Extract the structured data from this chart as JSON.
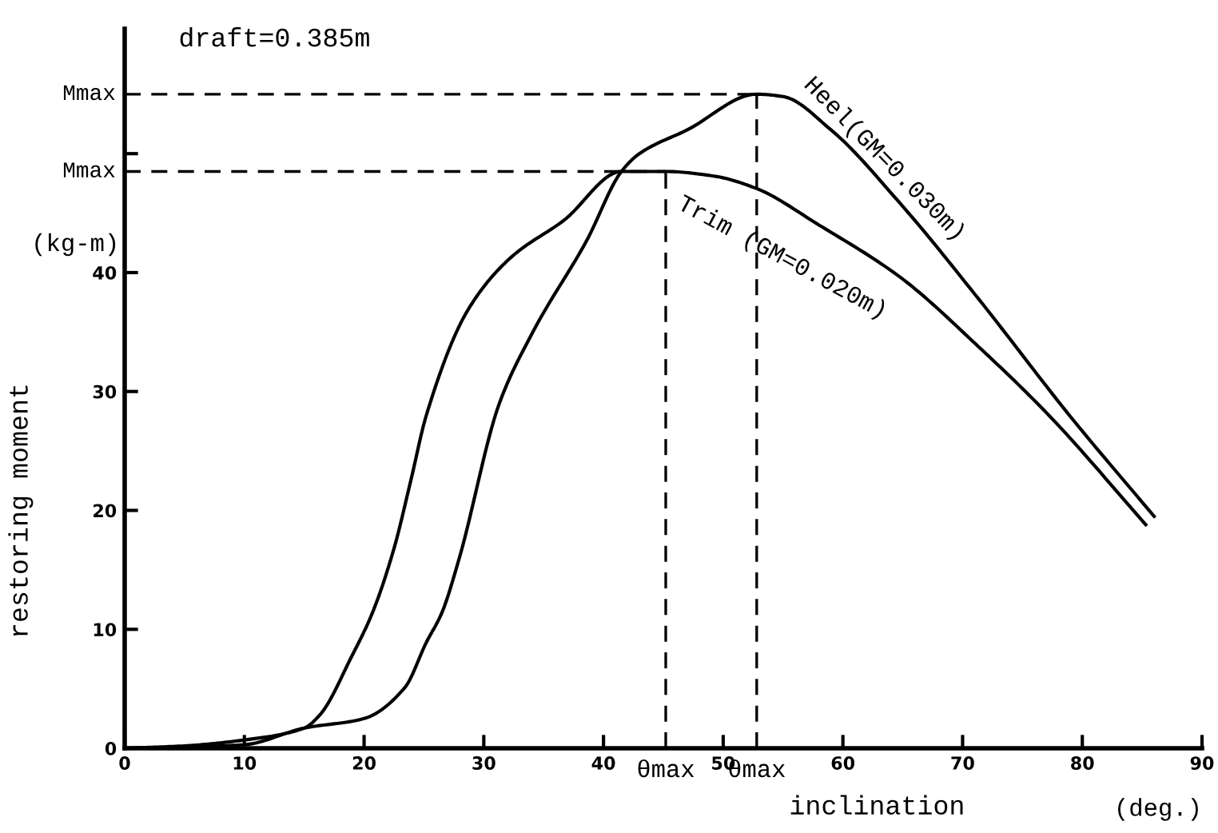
{
  "chart_data": {
    "type": "line",
    "xlabel": "inclination",
    "ylabel": "restoring moment",
    "annotations": [
      "draft=0.385m",
      "(kg-m)",
      "(deg.)"
    ],
    "series": [
      {
        "name": "Heel(GM=0.030m)",
        "color": "#000000",
        "x": [
          0,
          5,
          10,
          15,
          20,
          23.4,
          25.2,
          26.5,
          27.9,
          31.3,
          34.1,
          38.6,
          41.5,
          43,
          47,
          52.8,
          55,
          59,
          64.8,
          71.4,
          79,
          86
        ],
        "values": [
          0,
          0.1,
          0.3,
          1.7,
          2.5,
          5.1,
          8.9,
          11.4,
          15.8,
          29,
          35,
          42.7,
          48.5,
          50,
          52,
          55,
          54.8,
          52,
          45.8,
          37.7,
          27.9,
          19.5
        ]
      },
      {
        "name": "Trim (GM=0.020m)",
        "color": "#000000",
        "x": [
          0,
          5,
          10,
          15,
          16.3,
          19,
          20.7,
          22.5,
          23.9,
          25.2,
          28.7,
          32.3,
          36.7,
          41.5,
          45.2,
          49.3,
          52.7,
          58,
          64.8,
          71.4,
          77.3,
          85.3
        ],
        "values": [
          0,
          0.2,
          0.7,
          1.7,
          2.8,
          7.8,
          11.4,
          16.8,
          22.5,
          28,
          36.9,
          41.3,
          44.4,
          48.5,
          48.5,
          48.1,
          47.1,
          44,
          39.6,
          33.7,
          27.9,
          18.8
        ]
      }
    ],
    "xlim": [
      0,
      90
    ],
    "ylim": [
      0,
      60.5
    ],
    "xticks": [
      0,
      10,
      20,
      30,
      40,
      50,
      60,
      70,
      80,
      90
    ],
    "yticks": [
      0,
      10,
      20,
      30,
      40,
      {
        "value": 50,
        "label": null
      }
    ],
    "ref_lines": [
      {
        "axis": "y",
        "value": 55,
        "label": "Mmax",
        "line_style": "dashed"
      },
      {
        "axis": "y",
        "value": 48.5,
        "label": "Mmax",
        "line_style": "dashed"
      },
      {
        "axis": "x",
        "value": 52.8,
        "label": "θmax",
        "line_style": "dashed"
      },
      {
        "axis": "x",
        "value": 45.2,
        "label": "θmax",
        "line_style": "dashed"
      }
    ],
    "grid": false,
    "marker": "none",
    "line_style": "solid"
  }
}
